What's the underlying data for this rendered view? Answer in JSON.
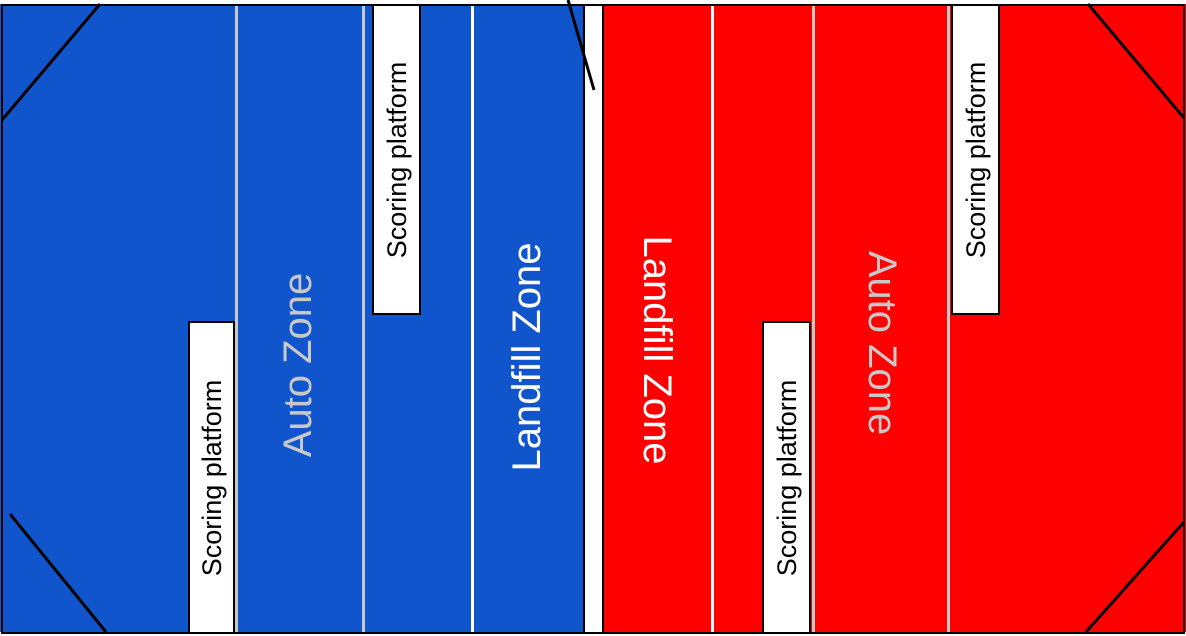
{
  "colors": {
    "blue_alliance": "#1155cc",
    "red_alliance": "#ff0000",
    "zone_line": "#c8c8c8",
    "platform": "#ffffff",
    "outline": "#000000",
    "auto_zone_text": "#c8c8c8",
    "landfill_zone_text": "#ffffff"
  },
  "blue_side": {
    "auto_zone_label": "Auto Zone",
    "landfill_zone_label": "Landfill Zone",
    "platform_lower_label": "Scoring platform",
    "platform_upper_label": "Scoring platform"
  },
  "red_side": {
    "landfill_zone_label": "Landfill Zone",
    "auto_zone_label": "Auto Zone",
    "platform_lower_label": "Scoring platform",
    "platform_upper_label": "Scoring platform"
  }
}
